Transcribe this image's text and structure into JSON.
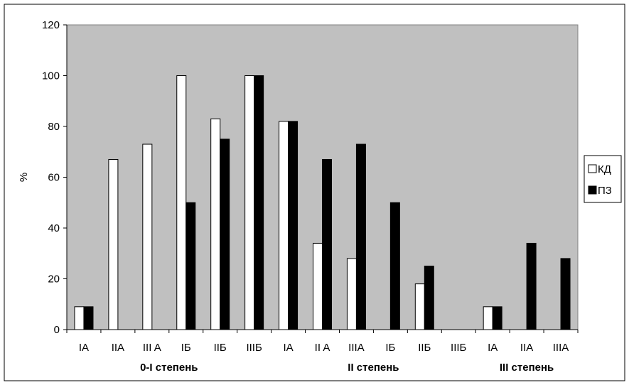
{
  "chart_data": {
    "type": "bar",
    "ylabel": "%",
    "ylim": [
      0,
      120
    ],
    "yticks": [
      0,
      20,
      40,
      60,
      80,
      100,
      120
    ],
    "grid": false,
    "legend_position": "right",
    "categories": [
      "IA",
      "IIA",
      "III A",
      "IБ",
      "IIБ",
      "IIIБ",
      "IA",
      "II A",
      "IIIA",
      "IБ",
      "IIБ",
      "IIIБ",
      "IA",
      "IIA",
      "IIIA"
    ],
    "groups": [
      {
        "label": "0-I степень",
        "start": 0,
        "end": 5
      },
      {
        "label": "II степень",
        "start": 6,
        "end": 11
      },
      {
        "label": "III степень",
        "start": 12,
        "end": 14
      }
    ],
    "series": [
      {
        "name": "КД",
        "color": "#ffffff",
        "values": [
          9,
          67,
          73,
          100,
          83,
          100,
          82,
          34,
          28,
          0,
          18,
          0,
          9,
          0,
          0
        ]
      },
      {
        "name": "ПЗ",
        "color": "#000000",
        "values": [
          9,
          0,
          0,
          50,
          75,
          100,
          82,
          67,
          73,
          50,
          25,
          0,
          9,
          34,
          28
        ]
      }
    ],
    "plot_background": "#c0c0c0"
  }
}
